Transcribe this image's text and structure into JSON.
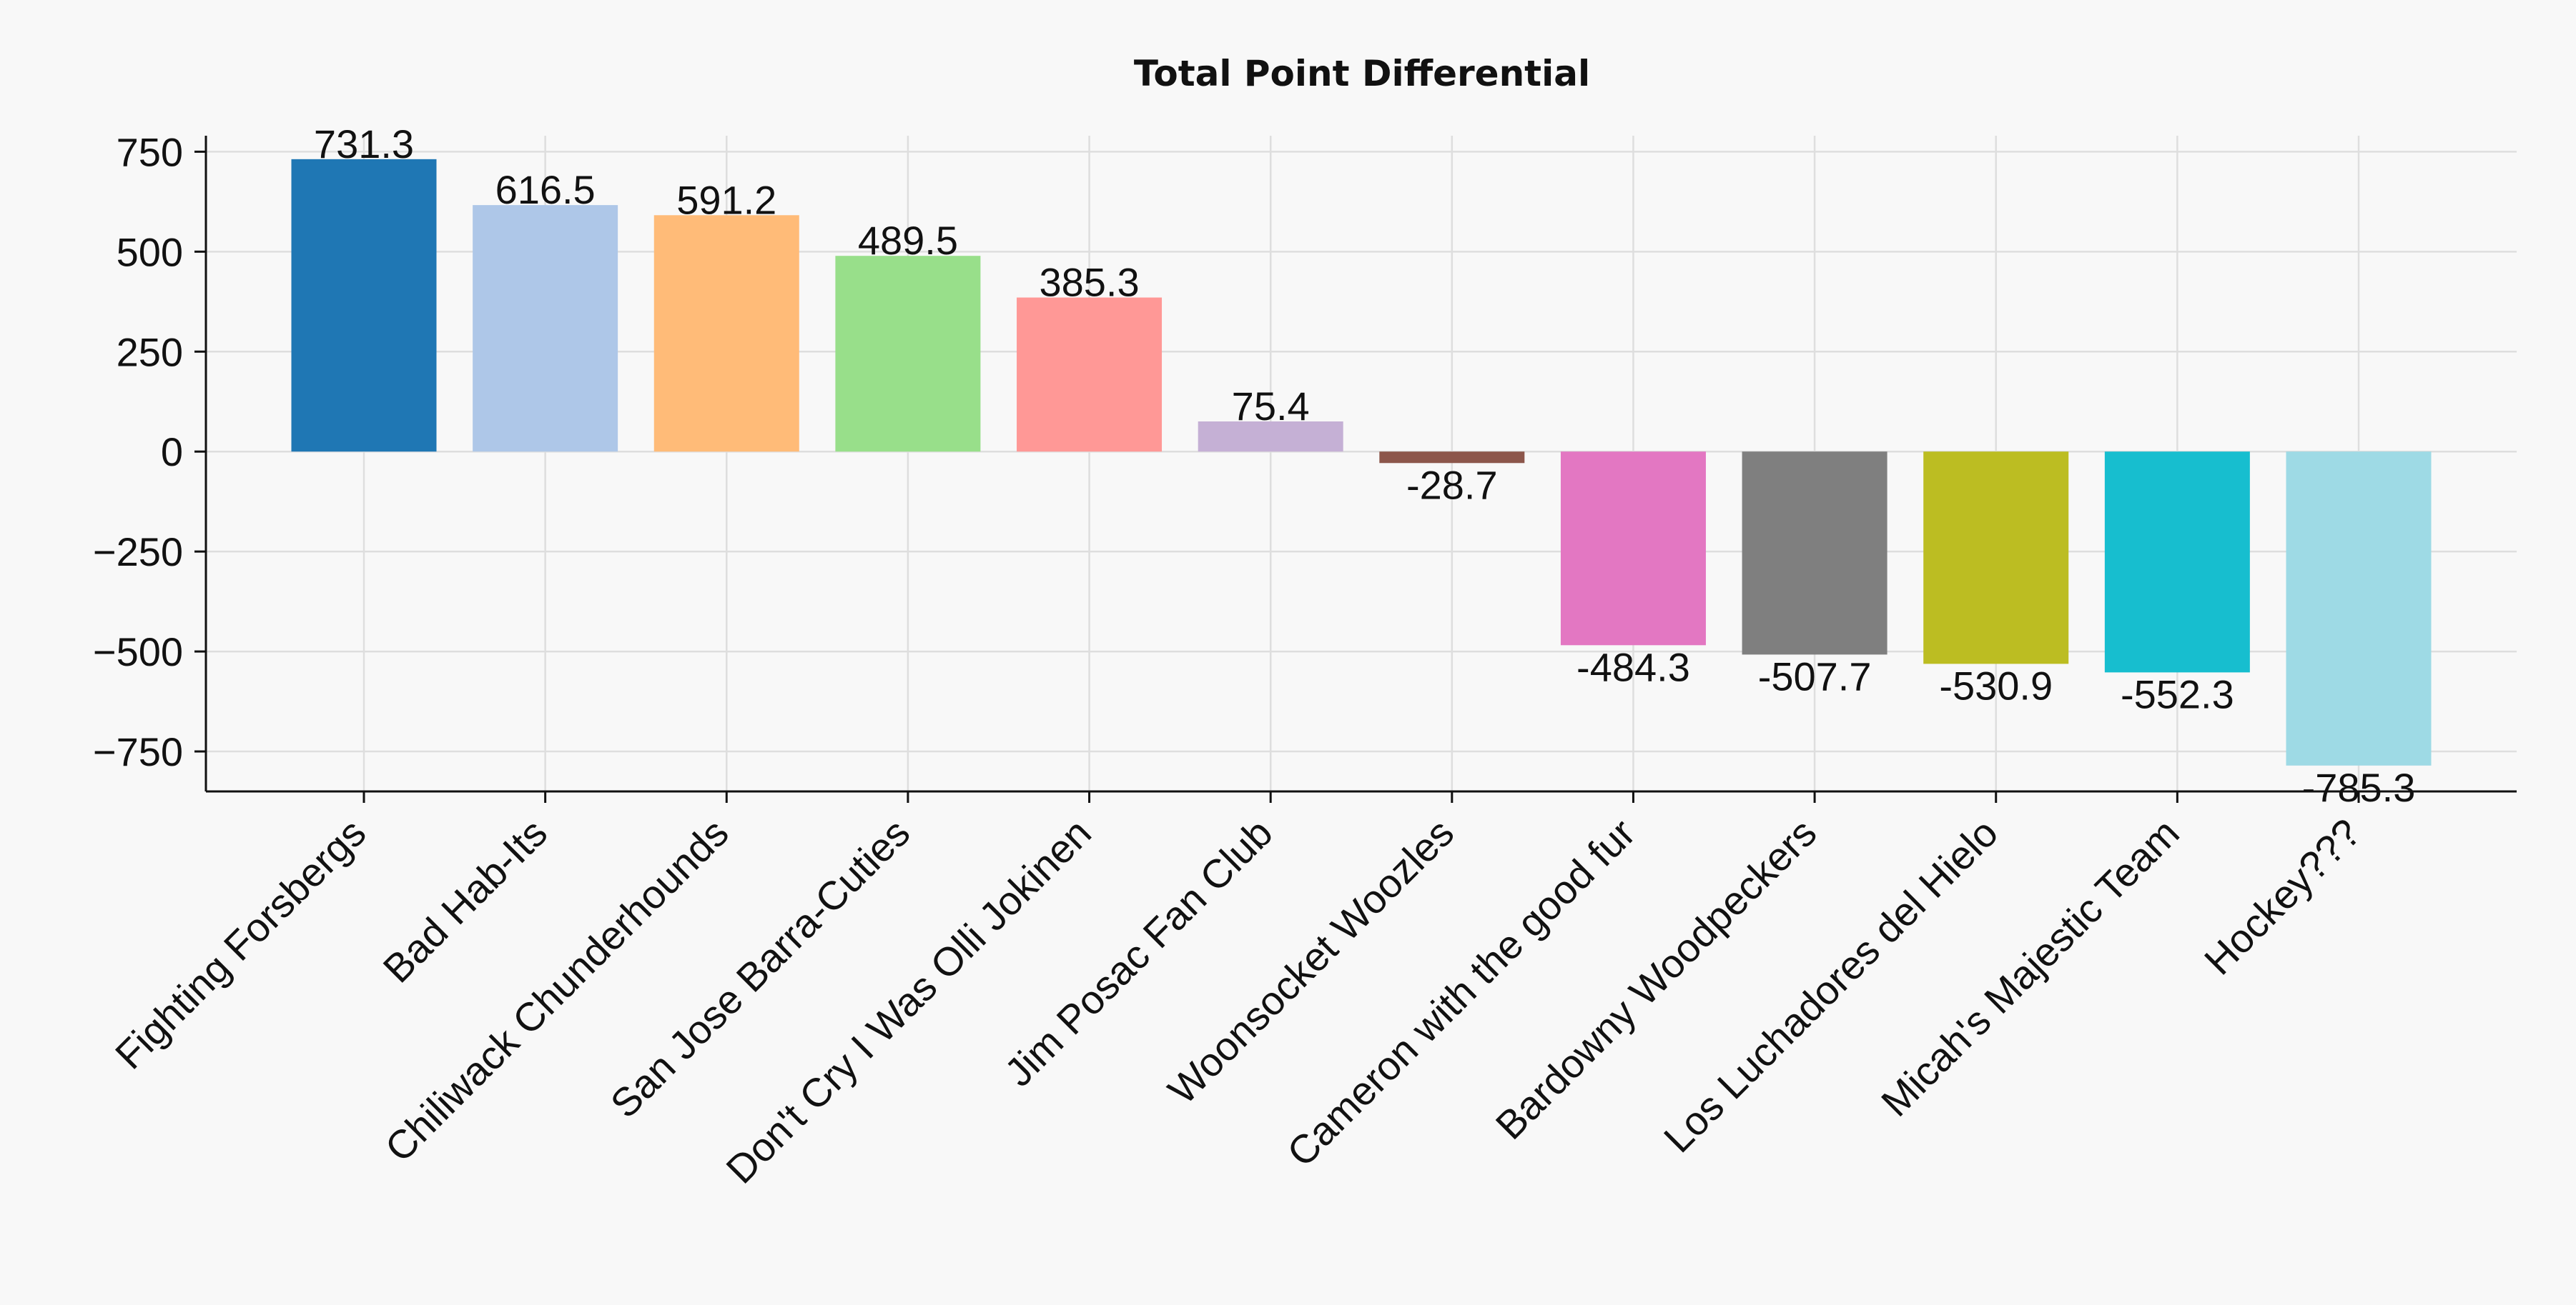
{
  "chart_data": {
    "type": "bar",
    "title": "Total Point Differential",
    "xlabel": "",
    "ylabel": "",
    "ylim": [
      -850,
      790
    ],
    "yticks": [
      750,
      500,
      250,
      0,
      -250,
      -500,
      -750
    ],
    "ytick_labels": [
      "750",
      "500",
      "250",
      "0",
      "−250",
      "−500",
      "−750"
    ],
    "grid": true,
    "categories": [
      "Fighting Forsbergs",
      "Bad Hab-Its",
      "Chiliwack Chunderhounds",
      "San Jose Barra-Cuties",
      "Don't Cry I Was Olli Jokinen",
      "Jim Posac Fan Club",
      "Woonsocket Woozles",
      "Cameron with the good fur",
      "Bardowny Woodpeckers",
      "Los Luchadores del Hielo",
      "Micah's Majestic Team",
      "Hockey???"
    ],
    "values": [
      731.3,
      616.5,
      591.2,
      489.5,
      385.3,
      75.4,
      -28.7,
      -484.3,
      -507.7,
      -530.9,
      -552.3,
      -785.3
    ],
    "value_labels": [
      "731.3",
      "616.5",
      "591.2",
      "489.5",
      "385.3",
      "75.4",
      "-28.7",
      "-484.3",
      "-507.7",
      "-530.9",
      "-552.3",
      "-785.3"
    ],
    "colors": [
      "#1f77b4",
      "#aec7e8",
      "#ffbb78",
      "#98df8a",
      "#ff9896",
      "#c5b0d5",
      "#8c564b",
      "#e377c2",
      "#7f7f7f",
      "#bcbd22",
      "#17becf",
      "#9edae5"
    ]
  }
}
